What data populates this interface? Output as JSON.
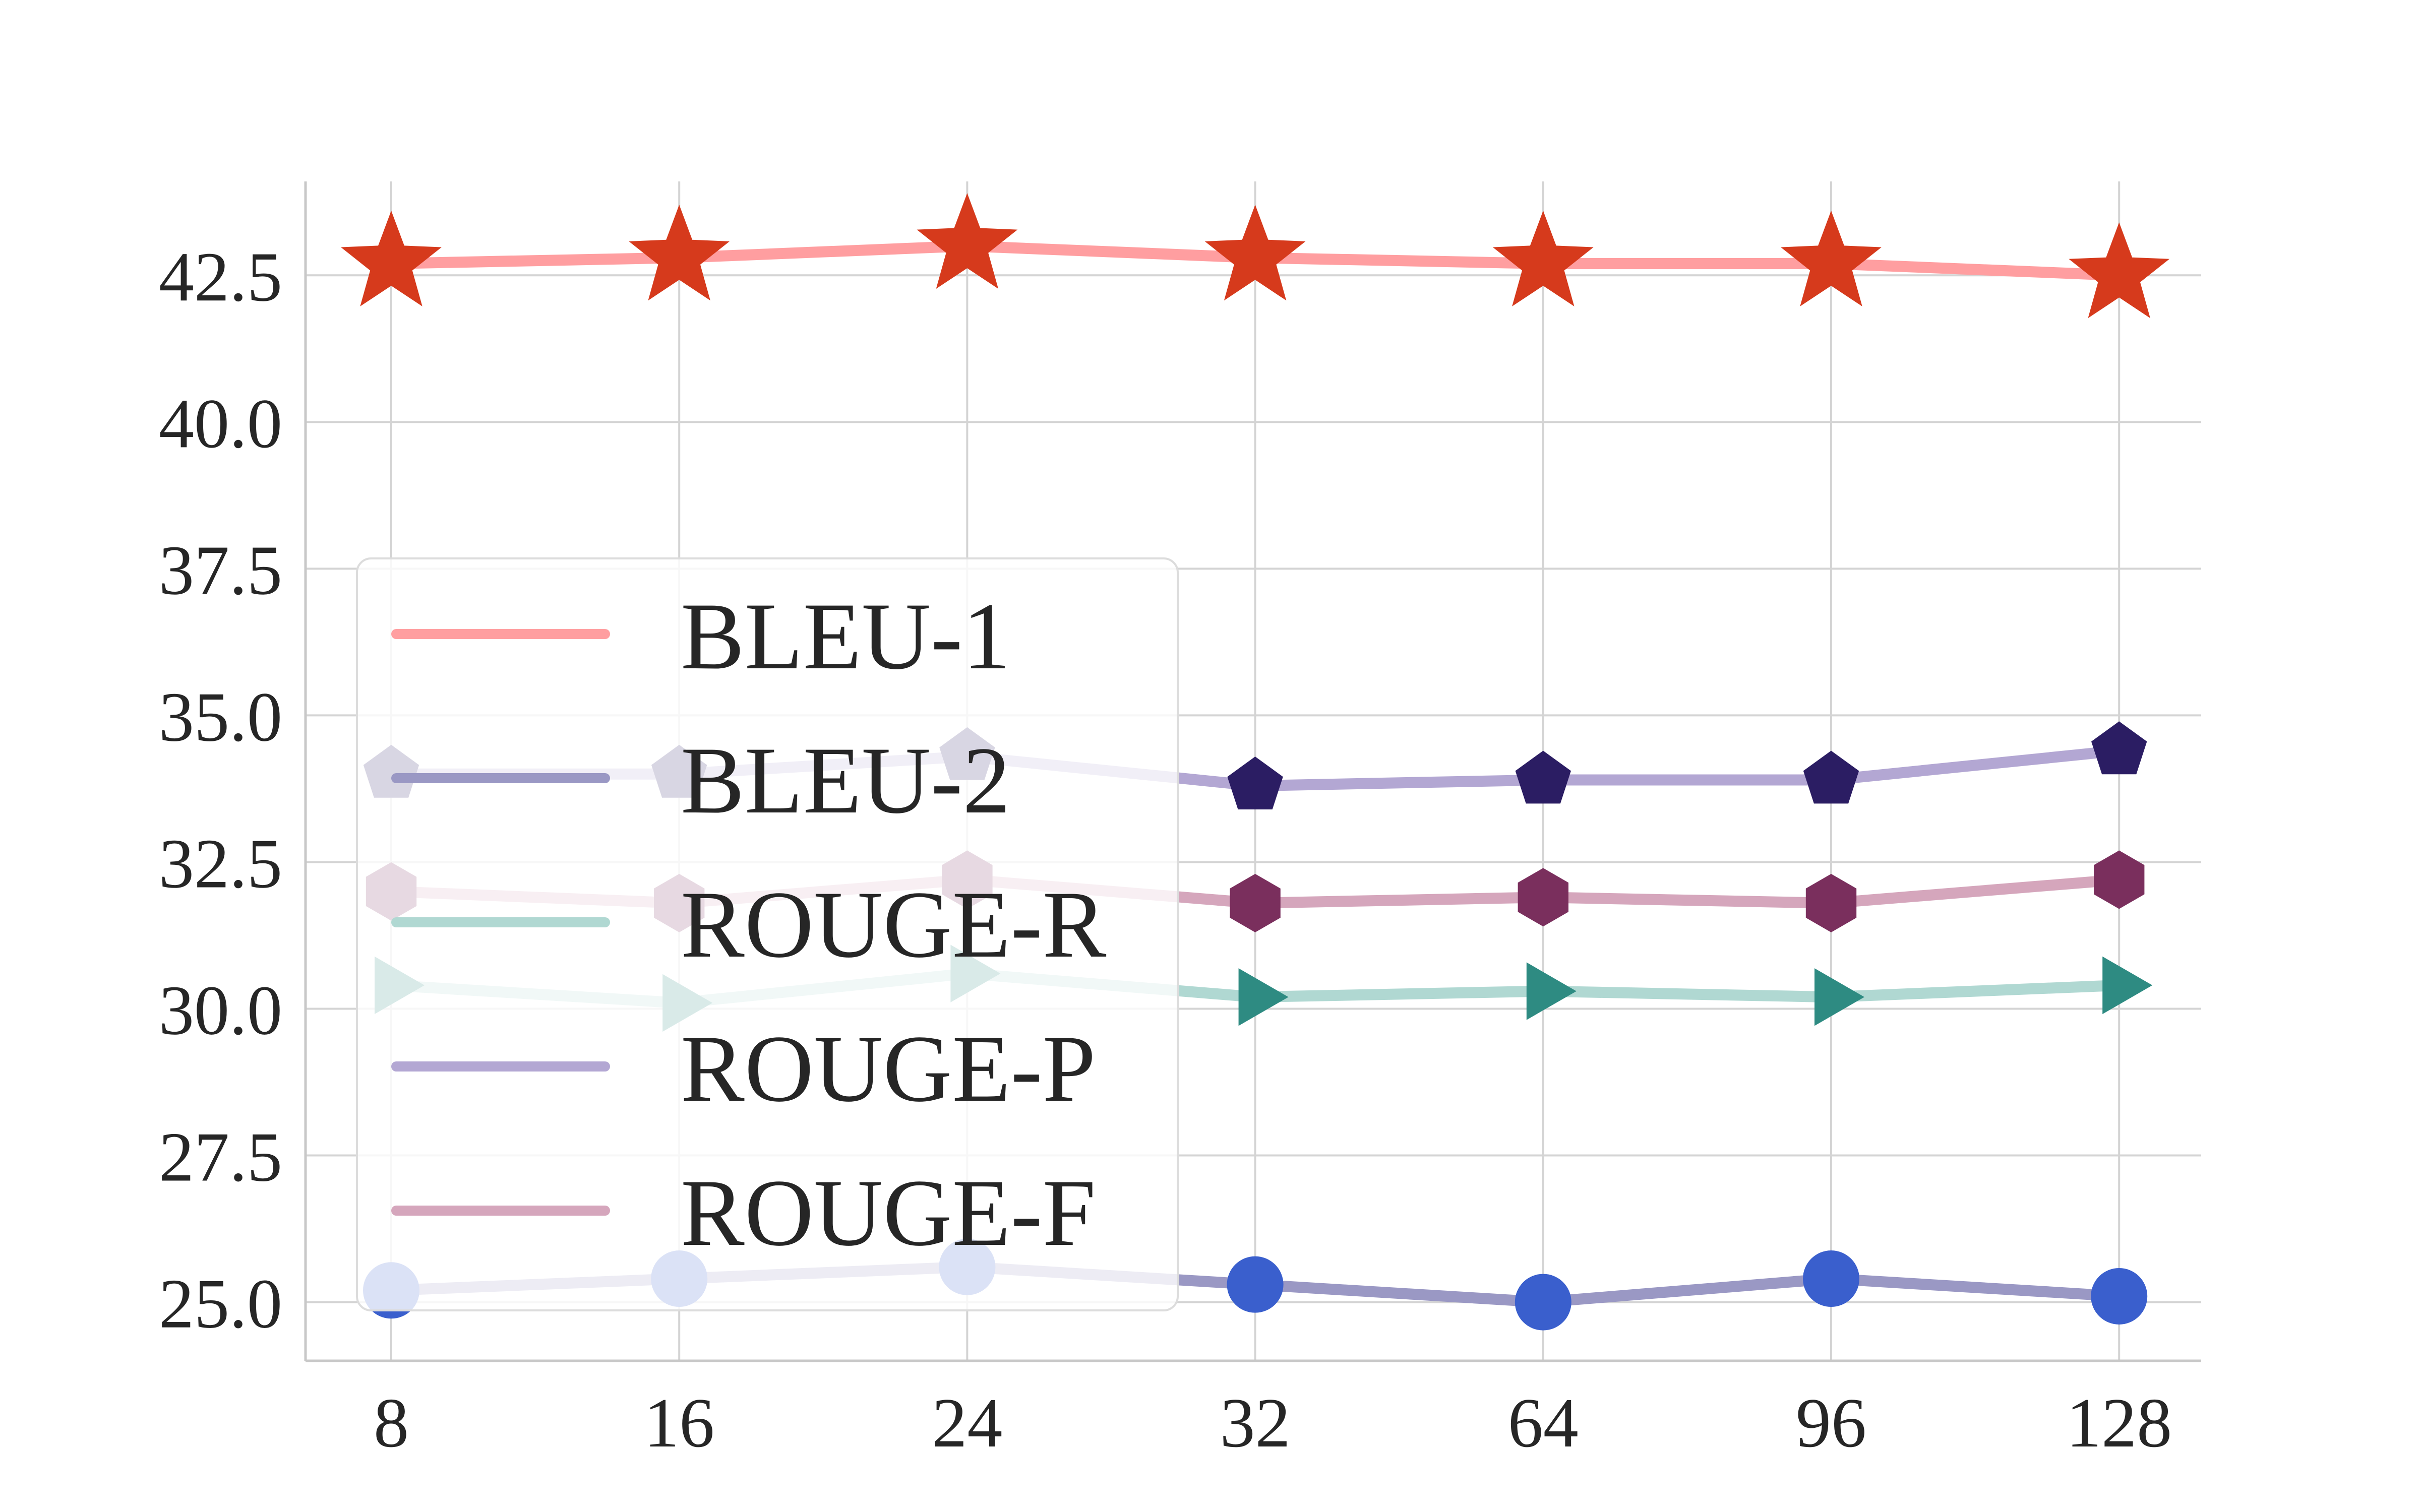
{
  "chart_data": {
    "type": "line",
    "title": "",
    "xlabel": "",
    "ylabel": "",
    "categories": [
      "8",
      "16",
      "24",
      "32",
      "64",
      "96",
      "128"
    ],
    "ylim": [
      24,
      44.1
    ],
    "yticks": [
      "25.0",
      "27.5",
      "30.0",
      "32.5",
      "35.0",
      "37.5",
      "40.0",
      "42.5"
    ],
    "grid": true,
    "legend_position": "center-left",
    "series": [
      {
        "name": "BLEU-1",
        "values": [
          42.7,
          42.8,
          43.0,
          42.8,
          42.7,
          42.7,
          42.5
        ],
        "line_color": "#ff9ea0",
        "marker": "star",
        "marker_color": "#d63a1c"
      },
      {
        "name": "BLEU-2",
        "values": [
          25.2,
          25.4,
          25.6,
          25.3,
          25.0,
          25.4,
          25.1
        ],
        "line_color": "#9a98c4",
        "marker": "circle",
        "marker_color": "#3a5fcd"
      },
      {
        "name": "ROUGE-R",
        "values": [
          30.4,
          30.1,
          30.6,
          30.2,
          30.3,
          30.2,
          30.4
        ],
        "line_color": "#b0d8d2",
        "marker": "triangle-right",
        "marker_color": "#2e8b82"
      },
      {
        "name": "ROUGE-P",
        "values": [
          34.0,
          34.0,
          34.3,
          33.8,
          33.9,
          33.9,
          34.4
        ],
        "line_color": "#b3a7d3",
        "marker": "pentagon",
        "marker_color": "#2b1d63"
      },
      {
        "name": "ROUGE-F",
        "values": [
          32.0,
          31.8,
          32.2,
          31.8,
          31.9,
          31.8,
          32.2
        ],
        "line_color": "#d5a6bc",
        "marker": "hexagon",
        "marker_color": "#7a2f5d"
      }
    ]
  }
}
